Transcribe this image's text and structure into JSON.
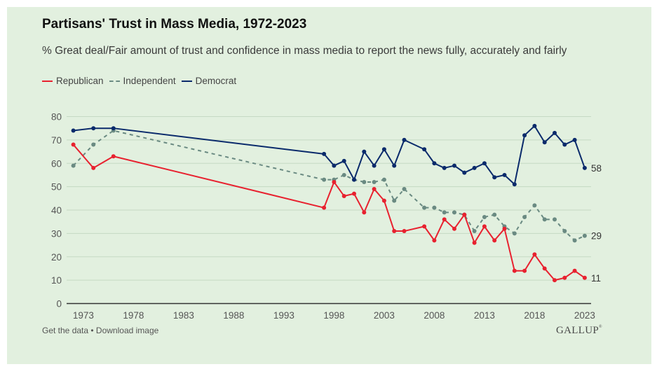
{
  "header": {
    "title": "Partisans' Trust in Mass Media, 1972-2023",
    "subtitle": "% Great deal/Fair amount of trust and confidence in mass media to report the news fully, accurately and fairly"
  },
  "legend": [
    {
      "label": "Republican",
      "color": "#e8212f",
      "style": "solid"
    },
    {
      "label": "Independent",
      "color": "#6a8a82",
      "style": "dashed"
    },
    {
      "label": "Democrat",
      "color": "#0a2a6b",
      "style": "solid"
    }
  ],
  "footer": {
    "get_data": "Get the data",
    "separator": " • ",
    "download": "Download image",
    "brand": "GALLUP",
    "brand_mark": "®"
  },
  "chart_data": {
    "type": "line",
    "title": "Partisans' Trust in Mass Media, 1972-2023",
    "subtitle": "% Great deal/Fair amount of trust and confidence in mass media to report the news fully, accurately and fairly",
    "xlabel": "",
    "ylabel": "",
    "xlim": [
      1971.4,
      2023.8
    ],
    "ylim": [
      0,
      80
    ],
    "yticks": [
      0,
      10,
      20,
      30,
      40,
      50,
      60,
      70,
      80
    ],
    "xticks": [
      1973,
      1978,
      1983,
      1988,
      1993,
      1998,
      2003,
      2008,
      2013,
      2018,
      2023
    ],
    "grid": true,
    "legend_position": "top-left",
    "x": [
      1972,
      1974,
      1976,
      1997,
      1998,
      1999,
      2000,
      2001,
      2002,
      2003,
      2004,
      2005,
      2007,
      2008,
      2009,
      2010,
      2011,
      2012,
      2013,
      2014,
      2015,
      2016,
      2017,
      2018,
      2019,
      2020,
      2021,
      2022,
      2023
    ],
    "series": [
      {
        "name": "Republican",
        "color": "#e8212f",
        "dashed": false,
        "values": [
          68,
          58,
          63,
          41,
          52,
          46,
          47,
          39,
          49,
          44,
          31,
          31,
          33,
          27,
          36,
          32,
          38,
          26,
          33,
          27,
          32,
          14,
          14,
          21,
          15,
          10,
          11,
          14,
          11
        ],
        "end_label": "11"
      },
      {
        "name": "Independent",
        "color": "#6a8a82",
        "dashed": true,
        "values": [
          59,
          68,
          74,
          53,
          53,
          55,
          53,
          52,
          52,
          53,
          44,
          49,
          41,
          41,
          39,
          39,
          38,
          31,
          37,
          38,
          33,
          30,
          37,
          42,
          36,
          36,
          31,
          27,
          29
        ],
        "end_label": "29"
      },
      {
        "name": "Democrat",
        "color": "#0a2a6b",
        "dashed": false,
        "values": [
          74,
          75,
          75,
          64,
          59,
          61,
          53,
          65,
          59,
          66,
          59,
          70,
          66,
          60,
          58,
          59,
          56,
          58,
          60,
          54,
          55,
          51,
          72,
          76,
          69,
          73,
          68,
          70,
          58
        ],
        "end_label": "58"
      }
    ]
  }
}
